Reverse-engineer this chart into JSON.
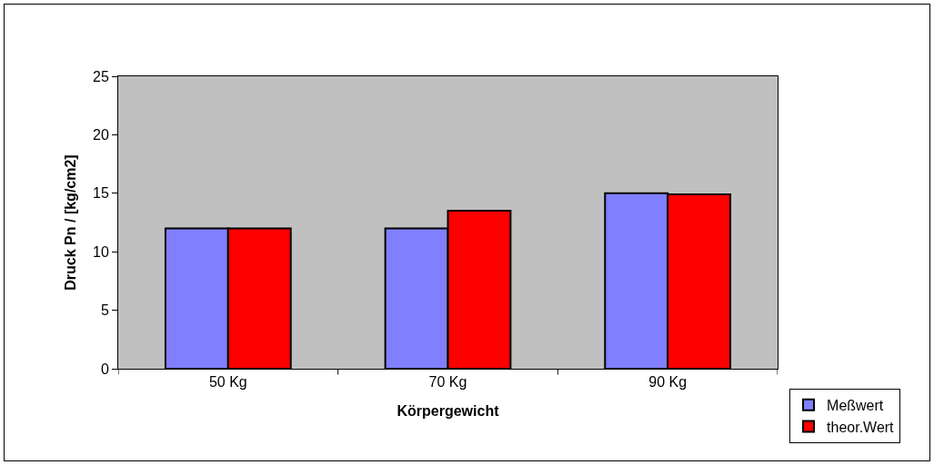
{
  "chart_data": {
    "type": "bar",
    "xlabel": "Körpergewicht",
    "ylabel": "Druck Pn / [kg/cm2]",
    "categories": [
      "50 Kg",
      "70 Kg",
      "90 Kg"
    ],
    "series": [
      {
        "name": "Meßwert",
        "color": "#8080ff",
        "values": [
          12,
          12,
          15
        ]
      },
      {
        "name": "theor.Wert",
        "color": "#ff0000",
        "values": [
          12,
          13.5,
          14.9
        ]
      }
    ],
    "ylim": [
      0,
      25
    ],
    "yticks": [
      0,
      5,
      10,
      15,
      20,
      25
    ],
    "grid": false,
    "legend": "bottom right"
  }
}
